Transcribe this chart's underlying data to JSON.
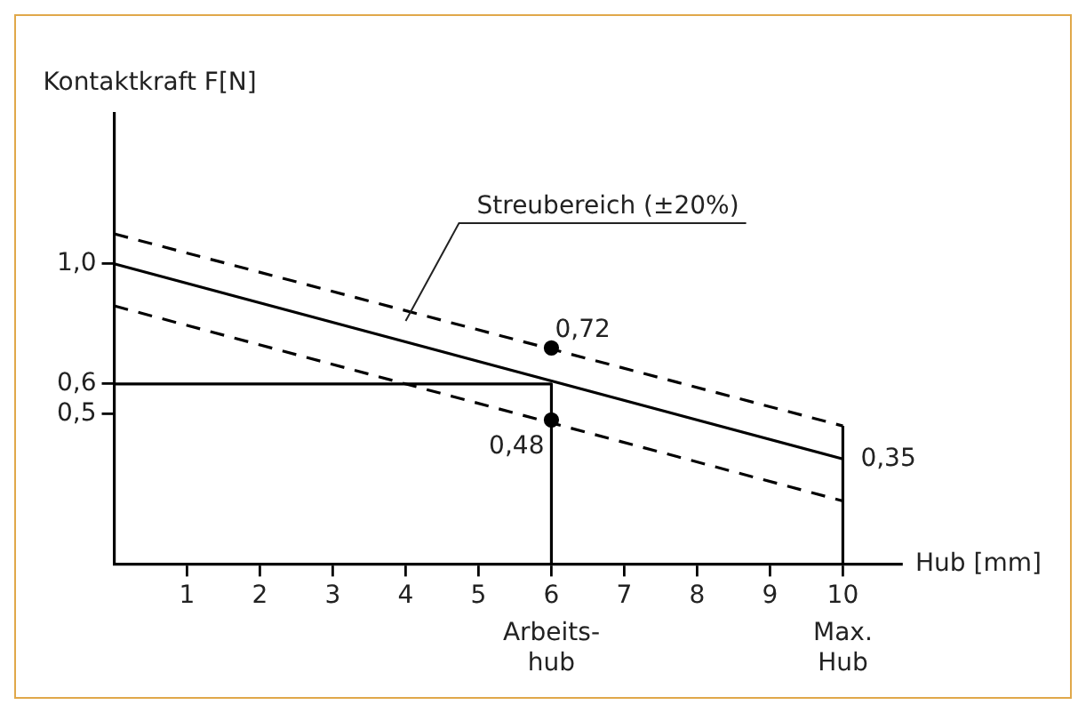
{
  "chart_data": {
    "type": "line",
    "xlabel": "Hub [mm]",
    "ylabel": "Kontaktkraft F[N]",
    "xlim": [
      0,
      10.8
    ],
    "ylim": [
      0,
      1.5
    ],
    "xticks": [
      1,
      2,
      3,
      4,
      5,
      6,
      7,
      8,
      9,
      10
    ],
    "yticks": [
      {
        "value": 0.5,
        "label": "0,5"
      },
      {
        "value": 0.6,
        "label": "0,6"
      },
      {
        "value": 1.0,
        "label": "1,0"
      }
    ],
    "grid": false,
    "legend": false,
    "marker": "none",
    "series": [
      {
        "color": "#000000",
        "x": [
          0,
          10
        ],
        "values": [
          1.0,
          0.35
        ],
        "value_labels": [
          null,
          "0,35"
        ],
        "line_style": "solid"
      },
      {
        "color": "#000000",
        "x": [
          0,
          10
        ],
        "values": [
          1.1,
          0.46
        ],
        "line_style": "dashed"
      },
      {
        "color": "#000000",
        "x": [
          0,
          10
        ],
        "values": [
          0.86,
          0.21
        ],
        "line_style": "dashed"
      },
      {
        "color": "#000000",
        "x": [
          0,
          6,
          6
        ],
        "values": [
          0.6,
          0.6,
          0
        ],
        "line_style": "solid"
      },
      {
        "color": "#000000",
        "x": [
          10,
          10
        ],
        "values": [
          0,
          0.46
        ],
        "line_style": "solid"
      },
      {
        "type": "scatter",
        "color": "#000000",
        "marker": "circle",
        "x": [
          6,
          6
        ],
        "values": [
          0.72,
          0.48
        ],
        "value_labels": [
          "0,72",
          "0,48"
        ]
      }
    ],
    "annotations": [
      {
        "text": "Streubereich (±20%)",
        "x": 4,
        "y": 0.81
      },
      {
        "text": "Arbeits-\nhub",
        "x": 6,
        "y": 0
      },
      {
        "text": "Max.\nHub",
        "x": 10,
        "y": 0
      }
    ]
  }
}
